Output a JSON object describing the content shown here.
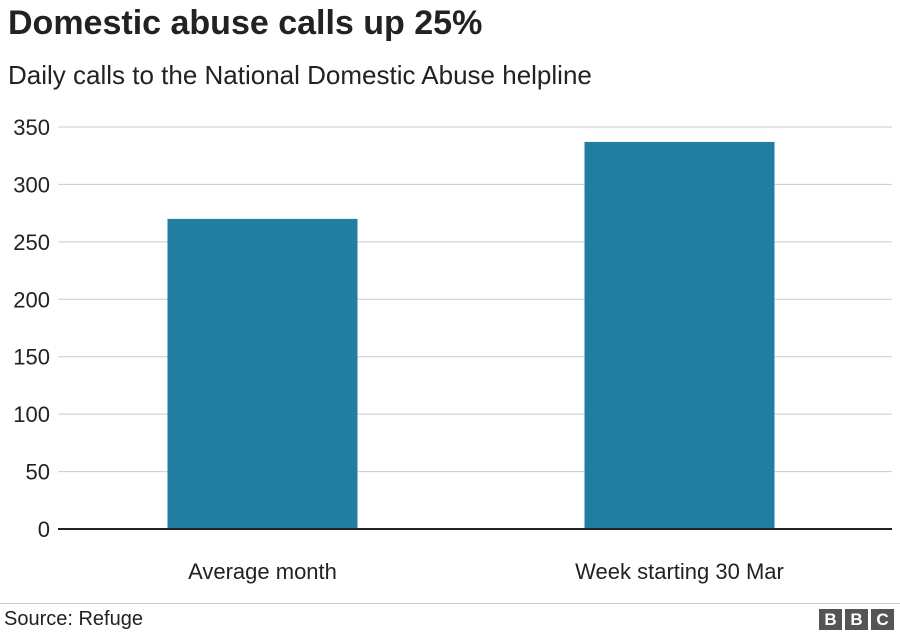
{
  "title": "Domestic abuse calls up 25%",
  "subtitle": "Daily calls to the National Domestic Abuse helpline",
  "source": "Source: Refuge",
  "logo": {
    "letters": [
      "B",
      "B",
      "C"
    ]
  },
  "colors": {
    "bar": "#217ea0",
    "grid": "#cccccc",
    "axis": "#222222"
  },
  "chart_data": {
    "type": "bar",
    "categories": [
      "Average month",
      "Week starting 30 Mar"
    ],
    "values": [
      270,
      337
    ],
    "ylim": [
      0,
      350
    ],
    "yticks": [
      0,
      50,
      100,
      150,
      200,
      250,
      300,
      350
    ],
    "grid": true,
    "xlabel": "",
    "ylabel": ""
  }
}
